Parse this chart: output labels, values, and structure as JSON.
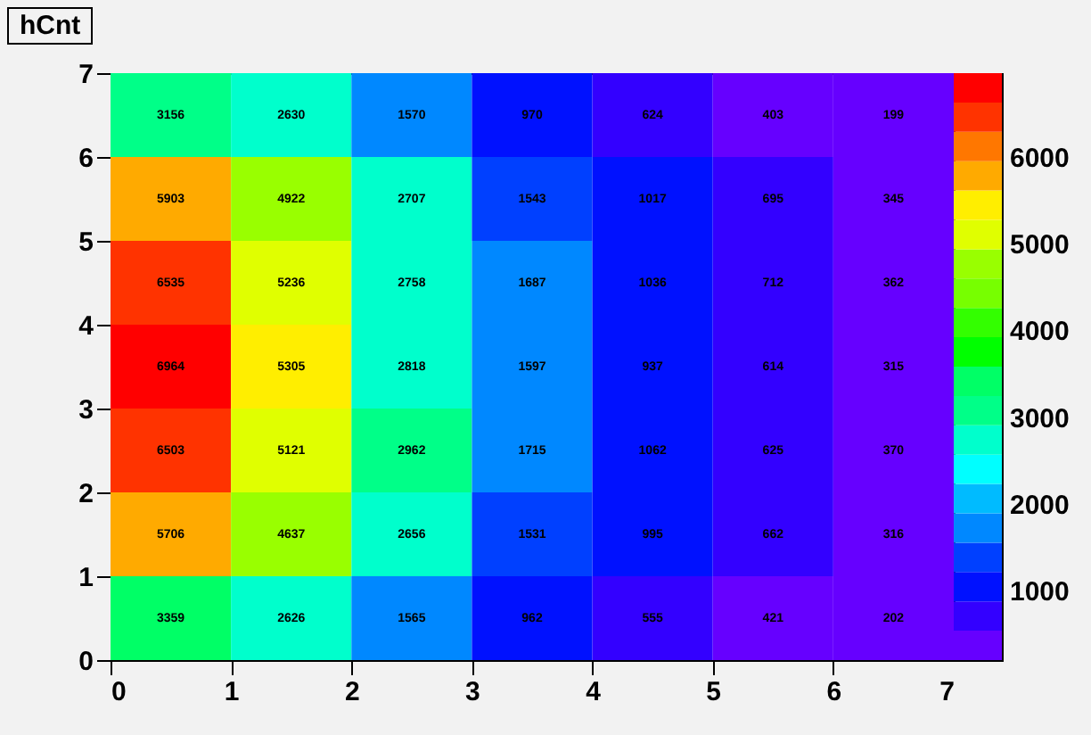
{
  "chart_data": {
    "type": "heatmap",
    "title": "hCnt",
    "xlim": [
      0,
      7
    ],
    "xticks": [
      0,
      1,
      2,
      3,
      4,
      5,
      6,
      7
    ],
    "ylim": [
      0,
      7
    ],
    "yticks": [
      0,
      1,
      2,
      3,
      4,
      5,
      6,
      7
    ],
    "cells": [
      [
        3156,
        2630,
        1570,
        970,
        624,
        403,
        199
      ],
      [
        5903,
        4922,
        2707,
        1543,
        1017,
        695,
        345
      ],
      [
        6535,
        5236,
        2758,
        1687,
        1036,
        712,
        362
      ],
      [
        6964,
        5305,
        2818,
        1597,
        937,
        614,
        315
      ],
      [
        6503,
        5121,
        2962,
        1715,
        1062,
        625,
        370
      ],
      [
        5706,
        4637,
        2656,
        1531,
        995,
        662,
        316
      ],
      [
        3359,
        2626,
        1565,
        962,
        555,
        421,
        202
      ]
    ],
    "data_labels": true,
    "clim": [
      199,
      6964
    ],
    "cticks": [
      1000,
      2000,
      3000,
      4000,
      5000,
      6000
    ],
    "colors": [
      "#6600ff",
      "#3300ff",
      "#0011ff",
      "#0040ff",
      "#0088ff",
      "#00bbff",
      "#00ffff",
      "#00ffcc",
      "#00ff88",
      "#00ff66",
      "#00ff00",
      "#33ff00",
      "#77ff00",
      "#99ff00",
      "#e0ff00",
      "#ffee00",
      "#ffaa00",
      "#ff7700",
      "#ff3300",
      "#ff0000"
    ]
  }
}
